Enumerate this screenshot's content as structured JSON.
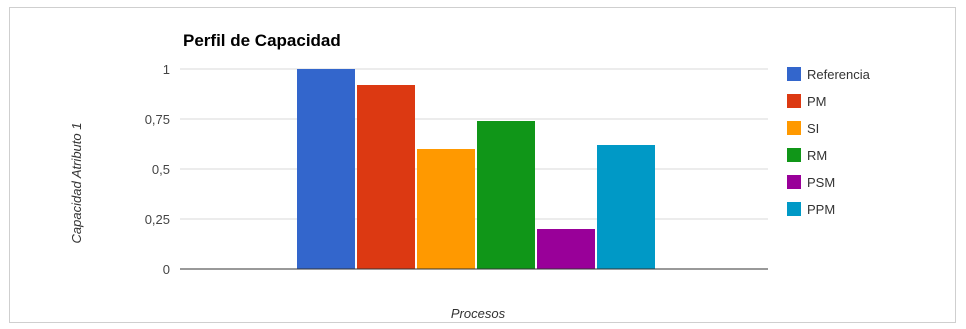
{
  "chart_data": {
    "type": "bar",
    "title": "Perfil de Capacidad",
    "xlabel": "Procesos",
    "ylabel": "Capacidad Atributo 1",
    "ylim": [
      0,
      1
    ],
    "yticks": [
      "0",
      "0,25",
      "0,5",
      "0,75",
      "1"
    ],
    "ytick_values": [
      0,
      0.25,
      0.5,
      0.75,
      1
    ],
    "grid": true,
    "legend_position": "right",
    "series": [
      {
        "name": "Referencia",
        "value": 1.0,
        "color": "#3366cc"
      },
      {
        "name": "PM",
        "value": 0.92,
        "color": "#dc3912"
      },
      {
        "name": "SI",
        "value": 0.6,
        "color": "#ff9900"
      },
      {
        "name": "RM",
        "value": 0.74,
        "color": "#109618"
      },
      {
        "name": "PSM",
        "value": 0.2,
        "color": "#990099"
      },
      {
        "name": "PPM",
        "value": 0.62,
        "color": "#0099c6"
      }
    ]
  }
}
